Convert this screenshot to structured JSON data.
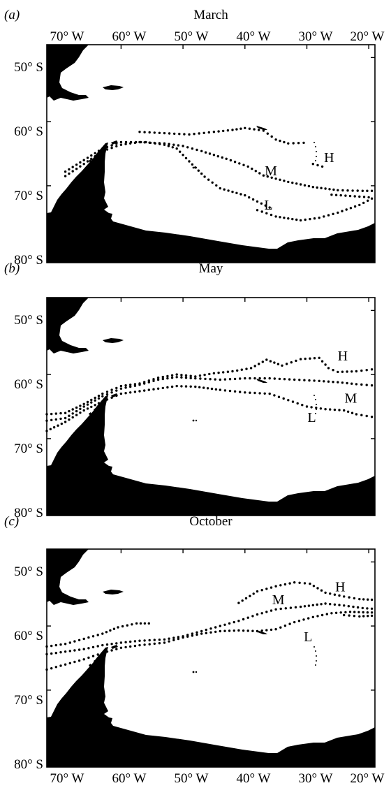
{
  "map": {
    "lon_ticks": [
      "70° W",
      "60° W",
      "50° W",
      "40° W",
      "30° W",
      "20° W"
    ],
    "lat_ticks": [
      "50° S",
      "60° S",
      "70° S",
      "80° S"
    ],
    "lon_range": [
      -72,
      -19
    ],
    "lat_range": [
      -82,
      -48
    ],
    "land_color": "#000000",
    "ocean_color": "#ffffff",
    "front_color": "#000000"
  },
  "panels": [
    {
      "id": "a",
      "label": "(a)",
      "title": "March",
      "fronts": [
        {
          "label": "H",
          "points": [
            [
              -57,
              -61.6
            ],
            [
              -53,
              -61.8
            ],
            [
              -49,
              -62
            ],
            [
              -45,
              -61.6
            ],
            [
              -42,
              -61.3
            ],
            [
              -40,
              -61
            ],
            [
              -37,
              -61.4
            ],
            [
              -35,
              -62.8
            ],
            [
              -33,
              -63.4
            ],
            [
              -30.5,
              -63.3
            ]
          ]
        },
        {
          "label": "H",
          "points": [
            [
              -29,
              -66.6
            ],
            [
              -27.5,
              -67
            ]
          ]
        },
        {
          "label": "M",
          "points": [
            [
              -69,
              -68.5
            ],
            [
              -66,
              -66.6
            ],
            [
              -63,
              -64.6
            ],
            [
              -60,
              -63.6
            ],
            [
              -57,
              -63.2
            ],
            [
              -53,
              -63.4
            ],
            [
              -50,
              -63.8
            ],
            [
              -47,
              -64.6
            ],
            [
              -43,
              -65.8
            ],
            [
              -39.5,
              -67
            ],
            [
              -37,
              -68.4
            ],
            [
              -33,
              -69.4
            ],
            [
              -29,
              -70.2
            ],
            [
              -25,
              -70.7
            ],
            [
              -21,
              -70.8
            ],
            [
              -19.5,
              -70.8
            ]
          ]
        },
        {
          "label": "L",
          "points": [
            [
              -69,
              -67.8
            ],
            [
              -66,
              -66
            ],
            [
              -63,
              -64.2
            ],
            [
              -60,
              -63.2
            ],
            [
              -56,
              -63.2
            ],
            [
              -53,
              -63.6
            ],
            [
              -51,
              -64.2
            ],
            [
              -49,
              -66.2
            ],
            [
              -46.5,
              -68.6
            ],
            [
              -44,
              -70.4
            ],
            [
              -40,
              -71.5
            ],
            [
              -36,
              -73.4
            ]
          ]
        },
        {
          "label": "L",
          "points": [
            [
              -38,
              -73.8
            ],
            [
              -35,
              -74.8
            ],
            [
              -31,
              -75.4
            ],
            [
              -28,
              -75
            ],
            [
              -25,
              -74.2
            ],
            [
              -21.5,
              -73
            ],
            [
              -19.5,
              -72
            ]
          ]
        },
        {
          "label": "L",
          "points": [
            [
              -26,
              -71.4
            ],
            [
              -23,
              -71.6
            ],
            [
              -20,
              -71.8
            ]
          ]
        }
      ],
      "front_labels": [
        {
          "text": "H",
          "lon": -26.4,
          "lat": -66.3
        },
        {
          "text": "M",
          "lon": -35.8,
          "lat": -68.4
        },
        {
          "text": "L",
          "lon": -36.2,
          "lat": -73.7
        }
      ]
    },
    {
      "id": "b",
      "label": "(b)",
      "title": "May",
      "fronts": [
        {
          "label": "H",
          "points": [
            [
              -72,
              -66.2
            ],
            [
              -69,
              -66
            ],
            [
              -66,
              -64.6
            ],
            [
              -63,
              -63
            ],
            [
              -60,
              -61.8
            ],
            [
              -57,
              -61.4
            ],
            [
              -54,
              -60.5
            ],
            [
              -51,
              -60
            ],
            [
              -48,
              -60.3
            ],
            [
              -45,
              -59.8
            ],
            [
              -42,
              -59.5
            ],
            [
              -39,
              -59
            ],
            [
              -36.5,
              -57.7
            ],
            [
              -34,
              -58.6
            ],
            [
              -31,
              -57.6
            ],
            [
              -28,
              -57.4
            ],
            [
              -26.5,
              -59
            ],
            [
              -25,
              -59.6
            ],
            [
              -22,
              -59.5
            ],
            [
              -19.5,
              -59.2
            ]
          ]
        },
        {
          "label": "M",
          "points": [
            [
              -72,
              -67.2
            ],
            [
              -69,
              -66.8
            ],
            [
              -66,
              -65
            ],
            [
              -63,
              -63.4
            ],
            [
              -60,
              -62.2
            ],
            [
              -57,
              -61.6
            ],
            [
              -54,
              -60.8
            ],
            [
              -51,
              -60.4
            ],
            [
              -48,
              -60.6
            ],
            [
              -44,
              -60.8
            ],
            [
              -40,
              -60.6
            ],
            [
              -36,
              -60.6
            ],
            [
              -32,
              -60.8
            ],
            [
              -28,
              -61
            ],
            [
              -25,
              -61.2
            ],
            [
              -22,
              -61.5
            ],
            [
              -19.5,
              -61.7
            ]
          ]
        },
        {
          "label": "L",
          "points": [
            [
              -72,
              -68.8
            ],
            [
              -69,
              -67.4
            ],
            [
              -66,
              -65.6
            ],
            [
              -63,
              -64.2
            ],
            [
              -60,
              -63
            ],
            [
              -57,
              -62.6
            ],
            [
              -54,
              -62.2
            ],
            [
              -51,
              -61.8
            ],
            [
              -48,
              -61.9
            ],
            [
              -44,
              -62.4
            ],
            [
              -40,
              -62.8
            ],
            [
              -36,
              -63
            ],
            [
              -33,
              -64
            ],
            [
              -30,
              -65
            ],
            [
              -27,
              -65.4
            ],
            [
              -24,
              -65.6
            ],
            [
              -22,
              -66.2
            ],
            [
              -19.5,
              -66.6
            ]
          ]
        }
      ],
      "front_labels": [
        {
          "text": "H",
          "lon": -24.2,
          "lat": -57.8
        },
        {
          "text": "M",
          "lon": -22.9,
          "lat": -64.4
        },
        {
          "text": "L",
          "lon": -29.2,
          "lat": -67.4
        }
      ]
    },
    {
      "id": "c",
      "label": "(c)",
      "title": "October",
      "fronts": [
        {
          "label": "H",
          "points": [
            [
              -72,
              -63.2
            ],
            [
              -69,
              -62.8
            ],
            [
              -66,
              -62
            ],
            [
              -63,
              -61.2
            ],
            [
              -60.5,
              -60.2
            ],
            [
              -57.5,
              -59.6
            ],
            [
              -55.5,
              -59.6
            ]
          ]
        },
        {
          "label": "H",
          "points": [
            [
              -41,
              -56.4
            ],
            [
              -38,
              -54.6
            ],
            [
              -35,
              -53.8
            ],
            [
              -32,
              -53.2
            ],
            [
              -29.5,
              -53.4
            ],
            [
              -27,
              -54.8
            ],
            [
              -24,
              -55.4
            ],
            [
              -21.5,
              -55.8
            ],
            [
              -19.5,
              -55.9
            ]
          ]
        },
        {
          "label": "M",
          "points": [
            [
              -72,
              -64.4
            ],
            [
              -69,
              -64
            ],
            [
              -66,
              -63.6
            ],
            [
              -63,
              -63
            ],
            [
              -60,
              -62.6
            ],
            [
              -57,
              -62.3
            ],
            [
              -53,
              -62.1
            ],
            [
              -50,
              -61.6
            ],
            [
              -47,
              -60.8
            ],
            [
              -44,
              -60
            ],
            [
              -41,
              -59.2
            ],
            [
              -38,
              -58.2
            ],
            [
              -35,
              -57.4
            ],
            [
              -31,
              -57
            ],
            [
              -27,
              -56.5
            ],
            [
              -24,
              -56.8
            ],
            [
              -21,
              -57.2
            ],
            [
              -19.5,
              -57.3
            ]
          ]
        },
        {
          "label": "L",
          "points": [
            [
              -72,
              -66.8
            ],
            [
              -69,
              -66
            ],
            [
              -66,
              -65.2
            ],
            [
              -63,
              -64.2
            ],
            [
              -60,
              -63.4
            ],
            [
              -57,
              -63
            ],
            [
              -53,
              -62.6
            ],
            [
              -50,
              -61.8
            ],
            [
              -47,
              -61.2
            ],
            [
              -44,
              -60.8
            ],
            [
              -41,
              -60.7
            ],
            [
              -38,
              -60.8
            ],
            [
              -35,
              -60.5
            ],
            [
              -32,
              -59.4
            ],
            [
              -29,
              -58.6
            ],
            [
              -26,
              -58
            ],
            [
              -23,
              -57.8
            ],
            [
              -19.5,
              -57.9
            ]
          ]
        },
        {
          "label": "L",
          "points": [
            [
              -24,
              -58.3
            ],
            [
              -21.5,
              -58.5
            ],
            [
              -19.5,
              -58.4
            ]
          ]
        }
      ],
      "front_labels": [
        {
          "text": "H",
          "lon": -24.6,
          "lat": -54.6
        },
        {
          "text": "M",
          "lon": -34.6,
          "lat": -56.6
        },
        {
          "text": "L",
          "lon": -29.8,
          "lat": -62.4
        }
      ]
    }
  ]
}
